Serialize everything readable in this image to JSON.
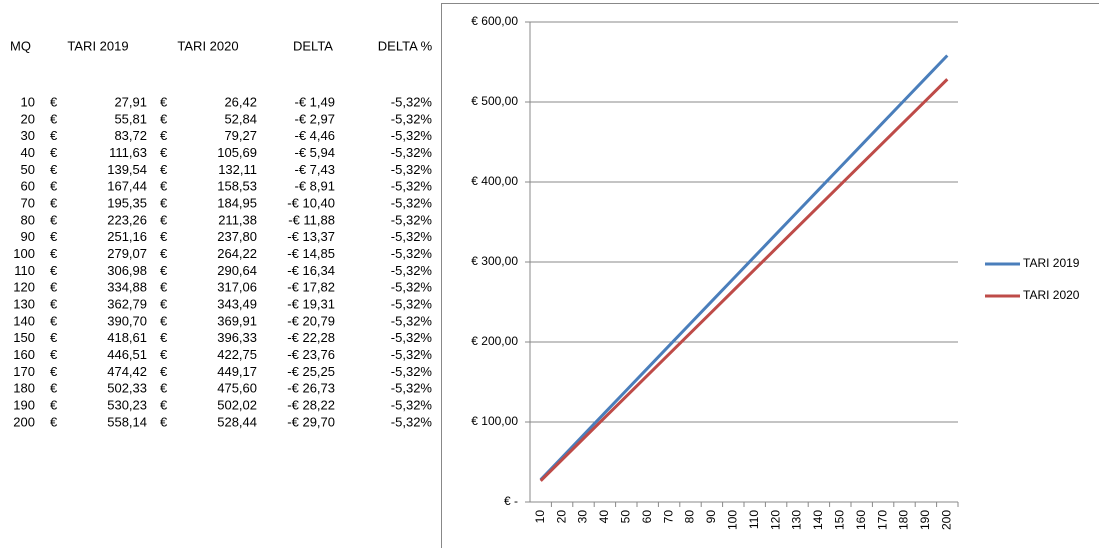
{
  "table": {
    "header": [
      "MQ",
      "TARI 2019",
      "TARI 2020",
      "DELTA",
      "DELTA %"
    ],
    "rows": [
      [
        "10",
        "€",
        "27,91",
        "€",
        "26,42",
        "-€ 1,49",
        "-5,32%"
      ],
      [
        "20",
        "€",
        "55,81",
        "€",
        "52,84",
        "-€ 2,97",
        "-5,32%"
      ],
      [
        "30",
        "€",
        "83,72",
        "€",
        "79,27",
        "-€ 4,46",
        "-5,32%"
      ],
      [
        "40",
        "€",
        "111,63",
        "€",
        "105,69",
        "-€ 5,94",
        "-5,32%"
      ],
      [
        "50",
        "€",
        "139,54",
        "€",
        "132,11",
        "-€ 7,43",
        "-5,32%"
      ],
      [
        "60",
        "€",
        "167,44",
        "€",
        "158,53",
        "-€ 8,91",
        "-5,32%"
      ],
      [
        "70",
        "€",
        "195,35",
        "€",
        "184,95",
        "-€ 10,40",
        "-5,32%"
      ],
      [
        "80",
        "€",
        "223,26",
        "€",
        "211,38",
        "-€ 11,88",
        "-5,32%"
      ],
      [
        "90",
        "€",
        "251,16",
        "€",
        "237,80",
        "-€ 13,37",
        "-5,32%"
      ],
      [
        "100",
        "€",
        "279,07",
        "€",
        "264,22",
        "-€ 14,85",
        "-5,32%"
      ],
      [
        "110",
        "€",
        "306,98",
        "€",
        "290,64",
        "-€ 16,34",
        "-5,32%"
      ],
      [
        "120",
        "€",
        "334,88",
        "€",
        "317,06",
        "-€ 17,82",
        "-5,32%"
      ],
      [
        "130",
        "€",
        "362,79",
        "€",
        "343,49",
        "-€ 19,31",
        "-5,32%"
      ],
      [
        "140",
        "€",
        "390,70",
        "€",
        "369,91",
        "-€ 20,79",
        "-5,32%"
      ],
      [
        "150",
        "€",
        "418,61",
        "€",
        "396,33",
        "-€ 22,28",
        "-5,32%"
      ],
      [
        "160",
        "€",
        "446,51",
        "€",
        "422,75",
        "-€ 23,76",
        "-5,32%"
      ],
      [
        "170",
        "€",
        "474,42",
        "€",
        "449,17",
        "-€ 25,25",
        "-5,32%"
      ],
      [
        "180",
        "€",
        "502,33",
        "€",
        "475,60",
        "-€ 26,73",
        "-5,32%"
      ],
      [
        "190",
        "€",
        "530,23",
        "€",
        "502,02",
        "-€ 28,22",
        "-5,32%"
      ],
      [
        "200",
        "€",
        "558,14",
        "€",
        "528,44",
        "-€ 29,70",
        "-5,32%"
      ]
    ]
  },
  "chart_data": {
    "type": "line",
    "categories": [
      "10",
      "20",
      "30",
      "40",
      "50",
      "60",
      "70",
      "80",
      "90",
      "100",
      "110",
      "120",
      "130",
      "140",
      "150",
      "160",
      "170",
      "180",
      "190",
      "200"
    ],
    "series": [
      {
        "name": "TARI 2019",
        "color": "#4a7ebb",
        "values": [
          27.91,
          55.81,
          83.72,
          111.63,
          139.54,
          167.44,
          195.35,
          223.26,
          251.16,
          279.07,
          306.98,
          334.88,
          362.79,
          390.7,
          418.61,
          446.51,
          474.42,
          502.33,
          530.23,
          558.14
        ]
      },
      {
        "name": "TARI 2020",
        "color": "#be4b48",
        "values": [
          26.42,
          52.84,
          79.27,
          105.69,
          132.11,
          158.53,
          184.95,
          211.38,
          237.8,
          264.22,
          290.64,
          317.06,
          343.49,
          369.91,
          396.33,
          422.75,
          449.17,
          475.6,
          502.02,
          528.44
        ]
      }
    ],
    "ylim": [
      0,
      600
    ],
    "yticks": [
      {
        "value": 0,
        "label": "€ -"
      },
      {
        "value": 100,
        "label": "€ 100,00"
      },
      {
        "value": 200,
        "label": "€ 200,00"
      },
      {
        "value": 300,
        "label": "€ 300,00"
      },
      {
        "value": 400,
        "label": "€ 400,00"
      },
      {
        "value": 500,
        "label": "€ 500,00"
      },
      {
        "value": 600,
        "label": "€ 600,00"
      }
    ],
    "grid": true,
    "legend": "right"
  }
}
